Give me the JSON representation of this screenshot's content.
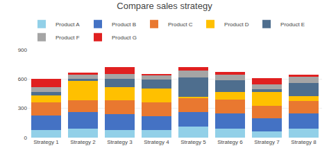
{
  "chart_data": {
    "type": "bar",
    "stacked": true,
    "title": "Compare sales strategy",
    "categories": [
      "Strategy 1",
      "Strategy 2",
      "Strategy 3",
      "Strategy 4",
      "Strategy 5",
      "Strategy 6",
      "Strategy 7",
      "Strategy 8"
    ],
    "series": [
      {
        "name": "Product A",
        "color": "#92D0E8",
        "values": [
          80,
          90,
          80,
          75,
          110,
          90,
          65,
          90
        ]
      },
      {
        "name": "Product B",
        "color": "#4472C4",
        "values": [
          150,
          170,
          160,
          145,
          155,
          160,
          130,
          155
        ]
      },
      {
        "name": "Product C",
        "color": "#E97830",
        "values": [
          130,
          120,
          140,
          140,
          140,
          140,
          130,
          130
        ]
      },
      {
        "name": "Product D",
        "color": "#FFC000",
        "values": [
          75,
          200,
          140,
          145,
          10,
          80,
          145,
          50
        ]
      },
      {
        "name": "Product E",
        "color": "#4E6E8E",
        "values": [
          30,
          25,
          80,
          90,
          205,
          115,
          25,
          135
        ]
      },
      {
        "name": "Product F",
        "color": "#A5A5A5",
        "values": [
          55,
          40,
          50,
          45,
          70,
          60,
          50,
          65
        ]
      },
      {
        "name": "Product G",
        "color": "#E02020",
        "values": [
          80,
          20,
          75,
          10,
          30,
          30,
          65,
          20
        ]
      }
    ],
    "ylim": [
      0,
      900
    ],
    "yticks": [
      0,
      300,
      600,
      900
    ],
    "grid": true,
    "legend": "top"
  }
}
